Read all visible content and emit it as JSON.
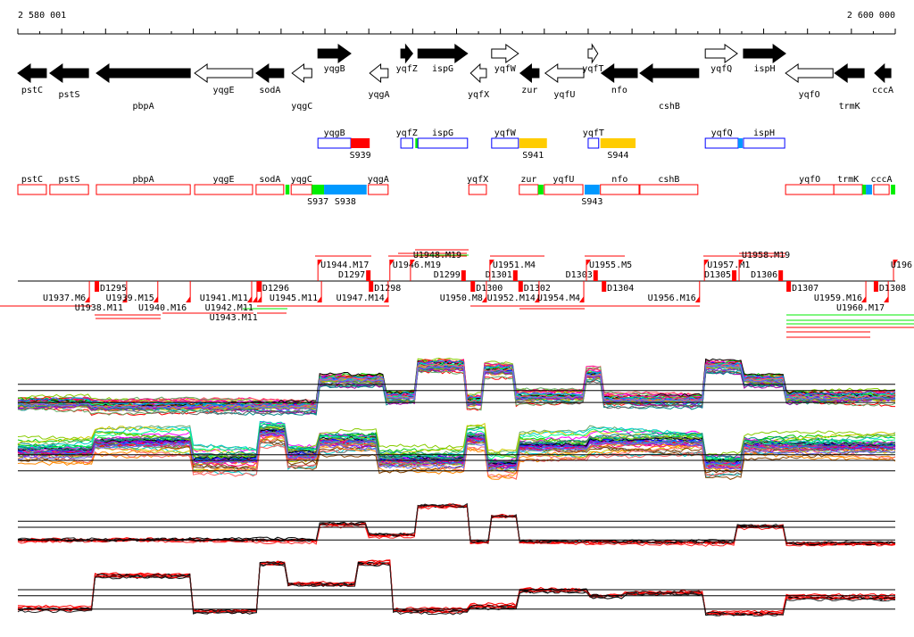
{
  "ruler": {
    "start_label": "2 580 001",
    "end_label": "2 600 000",
    "span_kb": 20
  },
  "genes": [
    {
      "name": "pstC",
      "start": 0.0,
      "end": 0.65,
      "strand": "-",
      "fill": "filled",
      "label_row": 1
    },
    {
      "name": "pstS",
      "start": 0.73,
      "end": 1.61,
      "strand": "-",
      "fill": "filled",
      "label_row": 2
    },
    {
      "name": "pbpA",
      "start": 1.79,
      "end": 3.93,
      "strand": "-",
      "fill": "filled",
      "label_row": 3
    },
    {
      "name": "yqgE",
      "start": 4.03,
      "end": 5.35,
      "strand": "-",
      "fill": "open",
      "label_row": 1
    },
    {
      "name": "sodA",
      "start": 5.43,
      "end": 6.06,
      "strand": "-",
      "fill": "filled",
      "label_row": 1
    },
    {
      "name": "yqgC",
      "start": 6.25,
      "end": 6.7,
      "strand": "-",
      "fill": "open",
      "label_row": 3
    },
    {
      "name": "yqgB",
      "start": 6.84,
      "end": 7.59,
      "strand": "+",
      "fill": "filled",
      "label_row": 0
    },
    {
      "name": "yqgA",
      "start": 8.02,
      "end": 8.44,
      "strand": "-",
      "fill": "open",
      "label_row": 2
    },
    {
      "name": "yqfZ",
      "start": 8.73,
      "end": 9.0,
      "strand": "+",
      "fill": "filled",
      "label_row": 0
    },
    {
      "name": "ispG",
      "start": 9.12,
      "end": 10.25,
      "strand": "+",
      "fill": "filled",
      "label_row": 0
    },
    {
      "name": "yqfX",
      "start": 10.32,
      "end": 10.68,
      "strand": "-",
      "fill": "open",
      "label_row": 2
    },
    {
      "name": "yqfW",
      "start": 10.8,
      "end": 11.41,
      "strand": "+",
      "fill": "open",
      "label_row": 0
    },
    {
      "name": "zur",
      "start": 11.45,
      "end": 11.88,
      "strand": "-",
      "fill": "filled",
      "label_row": 1
    },
    {
      "name": "yqfU",
      "start": 12.02,
      "end": 12.9,
      "strand": "-",
      "fill": "open",
      "label_row": 2
    },
    {
      "name": "yqfT",
      "start": 13.0,
      "end": 13.22,
      "strand": "+",
      "fill": "open",
      "label_row": 0
    },
    {
      "name": "nfo",
      "start": 13.3,
      "end": 14.12,
      "strand": "-",
      "fill": "filled",
      "label_row": 1
    },
    {
      "name": "cshB",
      "start": 14.18,
      "end": 15.52,
      "strand": "-",
      "fill": "filled",
      "label_row": 3
    },
    {
      "name": "yqfQ",
      "start": 15.67,
      "end": 16.4,
      "strand": "+",
      "fill": "open",
      "label_row": 0
    },
    {
      "name": "ispH",
      "start": 16.54,
      "end": 17.5,
      "strand": "+",
      "fill": "filled",
      "label_row": 0
    },
    {
      "name": "yqfO",
      "start": 17.5,
      "end": 18.58,
      "strand": "-",
      "fill": "open",
      "label_row": 2
    },
    {
      "name": "trmK",
      "start": 18.62,
      "end": 19.29,
      "strand": "-",
      "fill": "filled",
      "label_row": 3
    },
    {
      "name": "cccA",
      "start": 19.53,
      "end": 19.9,
      "strand": "-",
      "fill": "filled",
      "label_row": 1
    }
  ],
  "units_plus": [
    {
      "label": "yqgB",
      "start": 6.84,
      "end": 7.59,
      "type": "gene"
    },
    {
      "label": "S939",
      "start": 7.59,
      "end": 8.02,
      "type": "seg",
      "color": "#ff0000"
    },
    {
      "label": "yqfZ",
      "start": 8.73,
      "end": 9.0,
      "type": "gene"
    },
    {
      "label": "",
      "start": 9.06,
      "end": 9.12,
      "type": "seg",
      "color": "#00ee00"
    },
    {
      "label": "ispG",
      "start": 9.12,
      "end": 10.25,
      "type": "gene"
    },
    {
      "label": "yqfW",
      "start": 10.8,
      "end": 11.41,
      "type": "gene"
    },
    {
      "label": "S941",
      "start": 11.43,
      "end": 12.06,
      "type": "seg",
      "color": "#ffcc00"
    },
    {
      "label": "yqfT",
      "start": 13.0,
      "end": 13.24,
      "type": "gene"
    },
    {
      "label": "S944",
      "start": 13.28,
      "end": 14.08,
      "type": "seg",
      "color": "#ffcc00"
    },
    {
      "label": "yqfQ",
      "start": 15.67,
      "end": 16.42,
      "type": "gene"
    },
    {
      "label": "",
      "start": 16.42,
      "end": 16.52,
      "type": "seg",
      "color": "#0099ff"
    },
    {
      "label": "ispH",
      "start": 16.54,
      "end": 17.48,
      "type": "gene"
    }
  ],
  "units_minus": [
    {
      "label": "pstC",
      "start": 0.0,
      "end": 0.65,
      "type": "gene"
    },
    {
      "label": "pstS",
      "start": 0.73,
      "end": 1.61,
      "type": "gene"
    },
    {
      "label": "pbpA",
      "start": 1.79,
      "end": 3.93,
      "type": "gene"
    },
    {
      "label": "yqgE",
      "start": 4.03,
      "end": 5.35,
      "type": "gene"
    },
    {
      "label": "sodA",
      "start": 5.43,
      "end": 6.06,
      "type": "gene"
    },
    {
      "label": "",
      "start": 6.1,
      "end": 6.19,
      "type": "seg",
      "color": "#00ee00"
    },
    {
      "label": "yqgC",
      "start": 6.23,
      "end": 6.7,
      "type": "gene"
    },
    {
      "label": "S937",
      "start": 6.7,
      "end": 6.98,
      "type": "seg",
      "color": "#00ee00"
    },
    {
      "label": "S938",
      "start": 6.98,
      "end": 7.95,
      "type": "seg",
      "color": "#0099ff"
    },
    {
      "label": "yqgA",
      "start": 7.99,
      "end": 8.44,
      "type": "gene"
    },
    {
      "label": "yqfX",
      "start": 10.28,
      "end": 10.68,
      "type": "gene"
    },
    {
      "label": "zur",
      "start": 11.43,
      "end": 11.86,
      "type": "gene"
    },
    {
      "label": "",
      "start": 11.86,
      "end": 11.98,
      "type": "seg",
      "color": "#00ee00"
    },
    {
      "label": "yqfU",
      "start": 12.0,
      "end": 12.88,
      "type": "gene"
    },
    {
      "label": "S943",
      "start": 12.92,
      "end": 13.26,
      "type": "seg",
      "color": "#0099ff"
    },
    {
      "label": "nfo",
      "start": 13.28,
      "end": 14.16,
      "type": "gene"
    },
    {
      "label": "cshB",
      "start": 14.18,
      "end": 15.5,
      "type": "gene"
    },
    {
      "label": "yqfO",
      "start": 17.5,
      "end": 18.6,
      "type": "gene"
    },
    {
      "label": "trmK",
      "start": 18.6,
      "end": 19.25,
      "type": "gene"
    },
    {
      "label": "",
      "start": 19.25,
      "end": 19.33,
      "type": "seg",
      "color": "#00ee00"
    },
    {
      "label": "",
      "start": 19.33,
      "end": 19.47,
      "type": "seg",
      "color": "#0099ff"
    },
    {
      "label": "cccA",
      "start": 19.51,
      "end": 19.86,
      "type": "gene"
    },
    {
      "label": "",
      "start": 19.9,
      "end": 20.0,
      "type": "seg",
      "color": "#00ee00"
    }
  ],
  "promoters_up": [
    {
      "label": "U1944.M17",
      "pos": 6.84
    },
    {
      "label": "U1946.M19",
      "pos": 8.48
    },
    {
      "label": "U1948.M19",
      "pos": 8.95
    },
    {
      "label": "U1951.M4",
      "pos": 10.76
    },
    {
      "label": "U1955.M5",
      "pos": 12.96
    },
    {
      "label": "U1957.M1",
      "pos": 15.65
    },
    {
      "label": "U1958.M19",
      "pos": 16.44
    },
    {
      "label": "U196",
      "pos": 19.96
    }
  ],
  "terminators_up": [
    {
      "label": "D1297",
      "pos": 8.04
    },
    {
      "label": "D1299",
      "pos": 10.21
    },
    {
      "label": "D1301",
      "pos": 11.39
    },
    {
      "label": "D1303",
      "pos": 13.22
    },
    {
      "label": "D1305",
      "pos": 16.38
    },
    {
      "label": "D1306",
      "pos": 17.44
    }
  ],
  "terminators_down": [
    {
      "label": "D1295",
      "pos": 1.75
    },
    {
      "label": "D1296",
      "pos": 5.45
    },
    {
      "label": "D1298",
      "pos": 8.0
    },
    {
      "label": "D1300",
      "pos": 10.32
    },
    {
      "label": "D1302",
      "pos": 11.41
    },
    {
      "label": "D1304",
      "pos": 13.31
    },
    {
      "label": "D1307",
      "pos": 17.52
    },
    {
      "label": "D1308",
      "pos": 19.51
    }
  ],
  "promoters_down": [
    {
      "label": "U1937.M6",
      "pos": 1.63
    },
    {
      "label": "U1938.M11",
      "pos": 2.48
    },
    {
      "label": "U1939.M15",
      "pos": 3.19
    },
    {
      "label": "U1940.M16",
      "pos": 3.93
    },
    {
      "label": "U1941.M11",
      "pos": 5.33
    },
    {
      "label": "U1942.M11",
      "pos": 5.45
    },
    {
      "label": "U1943.M11",
      "pos": 5.55
    },
    {
      "label": "U1945.M11",
      "pos": 6.92
    },
    {
      "label": "U1947.M14",
      "pos": 8.44
    },
    {
      "label": "U1950.M8",
      "pos": 10.68
    },
    {
      "label": "U1952.M14",
      "pos": 11.88
    },
    {
      "label": "U1954.M4",
      "pos": 12.9
    },
    {
      "label": "U1956.M16",
      "pos": 15.54
    },
    {
      "label": "U1959.M16",
      "pos": 19.33
    },
    {
      "label": "U1960.M17",
      "pos": 19.84
    }
  ],
  "chart_data": [
    {
      "type": "line",
      "name": "plus-strand-conditions",
      "n_series": 40,
      "spread": 1.3,
      "ref_lines": [
        5.6,
        4.6,
        2.7
      ],
      "profile": [
        [
          1.63,
          2.6
        ],
        [
          6.84,
          2.1
        ],
        [
          8.35,
          6.4
        ],
        [
          9.06,
          3.6
        ],
        [
          10.17,
          8.6
        ],
        [
          10.58,
          2.9
        ],
        [
          11.3,
          7.9
        ],
        [
          12.92,
          3.6
        ],
        [
          13.33,
          7.1
        ],
        [
          15.67,
          3.1
        ],
        [
          16.48,
          8.6
        ],
        [
          17.5,
          6.4
        ],
        [
          20,
          3.6
        ]
      ]
    },
    {
      "type": "line",
      "name": "minus-strand-conditions",
      "n_series": 40,
      "spread": 2.2,
      "ref_lines": [
        4.9,
        4.1,
        2.6
      ],
      "profile": [
        [
          1.73,
          5.5
        ],
        [
          3.97,
          6.8
        ],
        [
          5.5,
          4.2
        ],
        [
          6.1,
          8.1
        ],
        [
          6.82,
          4.9
        ],
        [
          8.24,
          6.8
        ],
        [
          10.17,
          4.2
        ],
        [
          10.68,
          7.4
        ],
        [
          11.4,
          3.6
        ],
        [
          13.02,
          6.2
        ],
        [
          15.67,
          6.8
        ],
        [
          16.48,
          3.6
        ],
        [
          20,
          6.2
        ]
      ]
    },
    {
      "type": "line",
      "name": "plus-strand-summary",
      "n_series": 8,
      "spread": 0.4,
      "ref_lines": [
        6.1,
        5.2,
        3.3
      ],
      "profile": [
        [
          6.82,
          3.2
        ],
        [
          7.94,
          5.6
        ],
        [
          9.06,
          4.0
        ],
        [
          10.28,
          8.3
        ],
        [
          10.74,
          2.9
        ],
        [
          11.4,
          6.7
        ],
        [
          16.38,
          2.9
        ],
        [
          17.5,
          5.3
        ],
        [
          20,
          2.7
        ]
      ]
    },
    {
      "type": "line",
      "name": "minus-strand-summary",
      "n_series": 8,
      "spread": 0.5,
      "ref_lines": [
        5.2,
        4.3,
        2.3
      ],
      "profile": [
        [
          1.73,
          2.3
        ],
        [
          3.97,
          7.3
        ],
        [
          5.5,
          2.0
        ],
        [
          6.1,
          9.1
        ],
        [
          7.73,
          6.0
        ],
        [
          8.49,
          9.1
        ],
        [
          10.28,
          2.0
        ],
        [
          11.4,
          2.7
        ],
        [
          13.02,
          5.1
        ],
        [
          13.84,
          4.3
        ],
        [
          15.67,
          4.7
        ],
        [
          17.5,
          1.6
        ],
        [
          20,
          4.0
        ]
      ]
    }
  ],
  "series_colors": [
    "#ff0000",
    "#00cc00",
    "#0000ff",
    "#ff00ff",
    "#00cccc",
    "#cccc00",
    "#ff8800",
    "#8800ff",
    "#000000",
    "#884400",
    "#00ff88",
    "#ff0088",
    "#0088ff",
    "#88cc00",
    "#aa00aa",
    "#008888",
    "#666666",
    "#ff6666",
    "#66aa66",
    "#6666ff"
  ],
  "summary_colors": [
    "#ff0000",
    "#ff0000",
    "#ee0000",
    "#ff2222",
    "#000000",
    "#000000",
    "#ff0000",
    "#222222"
  ]
}
